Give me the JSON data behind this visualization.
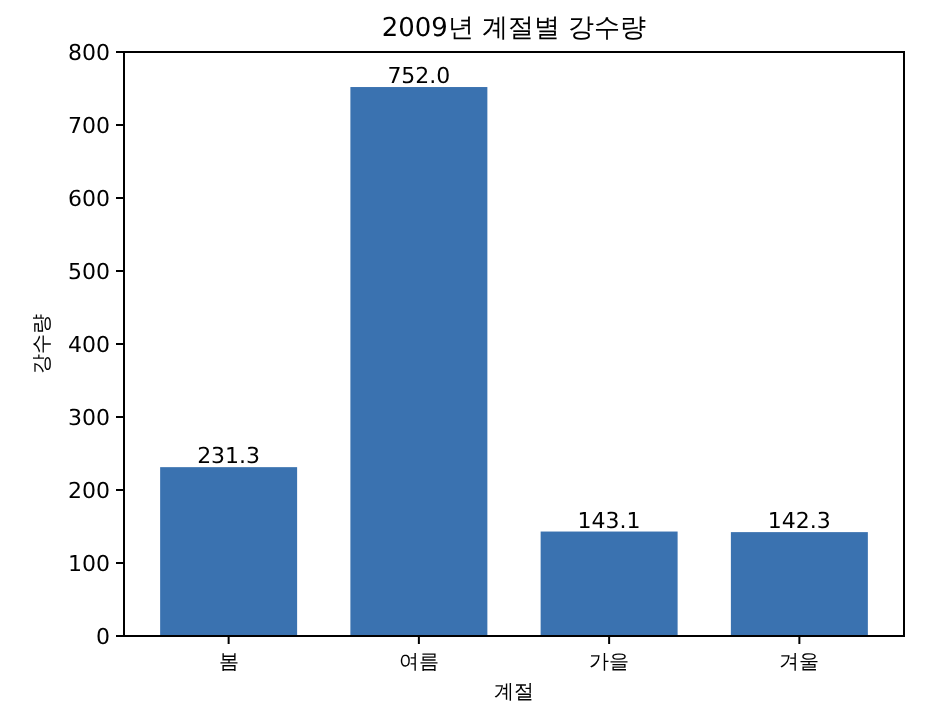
{
  "chart_data": {
    "type": "bar",
    "title": "2009년 계절별 강수량",
    "xlabel": "계절",
    "ylabel": "강수량",
    "categories": [
      "봄",
      "여름",
      "가을",
      "겨울"
    ],
    "values": [
      231.3,
      752.0,
      143.1,
      142.3
    ],
    "value_labels": [
      "231.3",
      "752.0",
      "143.1",
      "142.3"
    ],
    "color": "#3a72b0",
    "ylim": [
      0,
      800
    ],
    "yticks": [
      0,
      100,
      200,
      300,
      400,
      500,
      600,
      700,
      800
    ],
    "grid": false
  }
}
